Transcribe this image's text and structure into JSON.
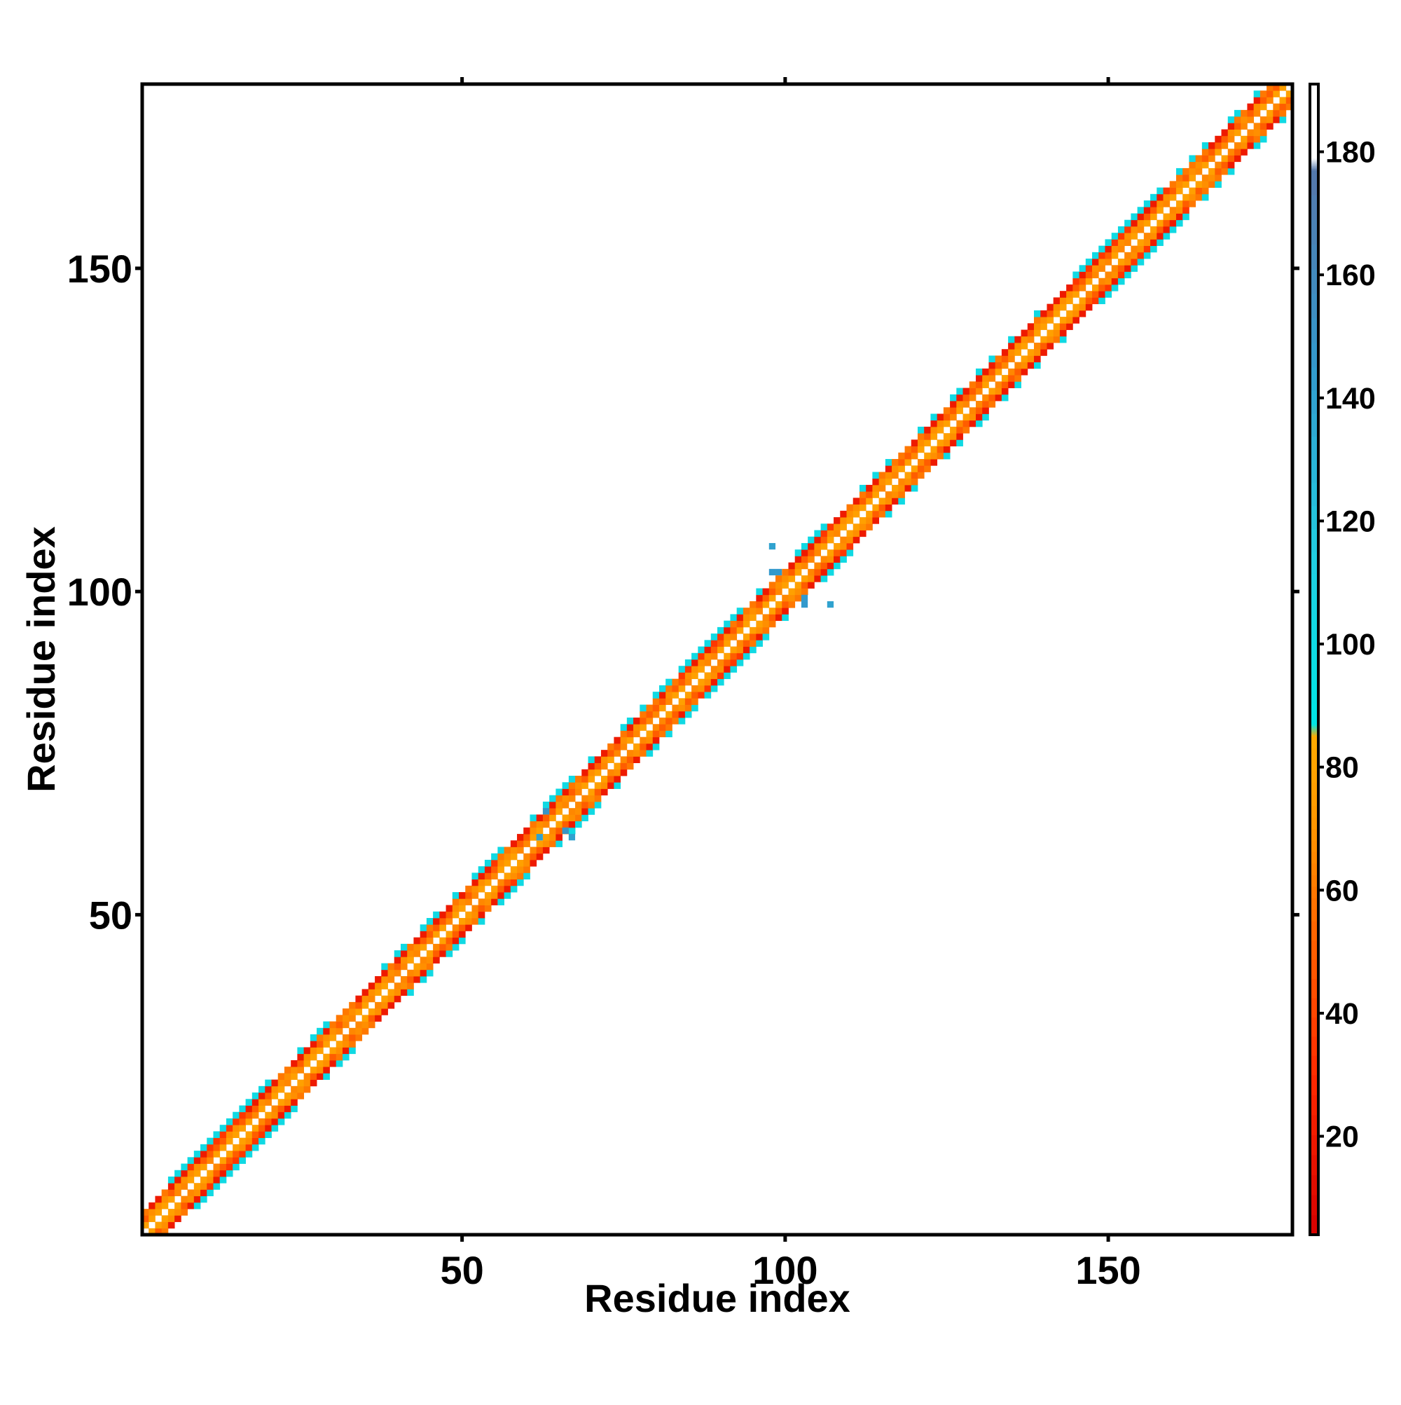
{
  "chart_data": {
    "type": "heatmap",
    "title": "",
    "xlabel": "Residue index",
    "ylabel": "Residue index",
    "xlim": [
      1,
      178
    ],
    "ylim": [
      1,
      178
    ],
    "x_ticks": [
      50,
      100,
      150
    ],
    "x_tick_labels": [
      "50",
      "100",
      "150"
    ],
    "y_ticks": [
      50,
      100,
      150
    ],
    "y_tick_labels": [
      "50",
      "100",
      "150"
    ],
    "colorbar": {
      "range": [
        4,
        191
      ],
      "ticks": [
        20,
        40,
        60,
        80,
        100,
        120,
        140,
        160,
        180
      ],
      "tick_labels": [
        "20",
        "40",
        "60",
        "80",
        "100",
        "120",
        "140",
        "160",
        "180"
      ],
      "stops": [
        {
          "value": 4,
          "color": "#d40000"
        },
        {
          "value": 30,
          "color": "#ff2a00"
        },
        {
          "value": 55,
          "color": "#ff6a00"
        },
        {
          "value": 70,
          "color": "#ff9500"
        },
        {
          "value": 85,
          "color": "#ffaa00"
        },
        {
          "value": 87,
          "color": "#00e5e5"
        },
        {
          "value": 115,
          "color": "#22cce0"
        },
        {
          "value": 145,
          "color": "#3399cc"
        },
        {
          "value": 177,
          "color": "#5577aa"
        },
        {
          "value": 179,
          "color": "#ffffff"
        },
        {
          "value": 191,
          "color": "#ffffff"
        }
      ]
    },
    "diagonal_band": {
      "description": "contact values shown only near the main diagonal (|i-j| <= 4); cells above the cutoff are white",
      "offset_values": {
        "1": 75,
        "2": 50,
        "3": 20,
        "4": 100
      },
      "helix_regions": [
        [
          8,
          20
        ],
        [
          52,
          58
        ],
        [
          84,
          94
        ],
        [
          103,
          110
        ],
        [
          145,
          162
        ]
      ],
      "sparse_cells": [
        {
          "x": 63,
          "y": 66,
          "value": 150
        },
        {
          "x": 66,
          "y": 63,
          "value": 150
        },
        {
          "x": 62,
          "y": 62,
          "value": 140
        },
        {
          "x": 67,
          "y": 62,
          "value": 140
        },
        {
          "x": 98,
          "y": 107,
          "value": 140
        },
        {
          "x": 98,
          "y": 103,
          "value": 145
        },
        {
          "x": 99,
          "y": 103,
          "value": 145
        },
        {
          "x": 107,
          "y": 98,
          "value": 140
        },
        {
          "x": 103,
          "y": 98,
          "value": 145
        },
        {
          "x": 103,
          "y": 99,
          "value": 145
        }
      ]
    }
  }
}
